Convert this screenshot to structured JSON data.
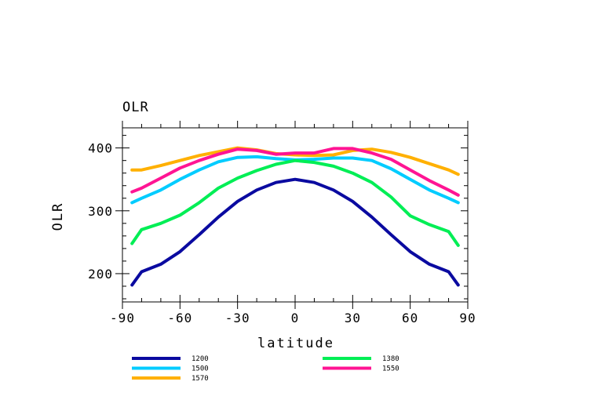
{
  "chart_data": {
    "type": "line",
    "title": "OLR",
    "xlabel": "latitude",
    "ylabel": "OLR",
    "xlim": [
      -90,
      90
    ],
    "ylim": [
      155,
      432
    ],
    "xticks": [
      -90,
      -60,
      -30,
      0,
      30,
      60,
      90
    ],
    "yticks": [
      200,
      300,
      400
    ],
    "x": [
      -85,
      -80,
      -70,
      -60,
      -50,
      -40,
      -30,
      -20,
      -10,
      0,
      10,
      20,
      30,
      40,
      50,
      60,
      70,
      80,
      85
    ],
    "series": [
      {
        "name": "1200",
        "color": "#0a0aa0",
        "values": [
          182,
          203,
          215,
          235,
          262,
          290,
          315,
          333,
          345,
          350,
          345,
          333,
          315,
          290,
          262,
          235,
          215,
          203,
          182
        ]
      },
      {
        "name": "1500",
        "color": "#00ccff",
        "values": [
          313,
          320,
          333,
          350,
          365,
          378,
          385,
          386,
          383,
          381,
          382,
          384,
          384,
          380,
          367,
          350,
          333,
          320,
          313
        ]
      },
      {
        "name": "1570",
        "color": "#ffb000",
        "values": [
          365,
          365,
          372,
          380,
          388,
          394,
          400,
          397,
          391,
          389,
          388,
          389,
          396,
          398,
          393,
          385,
          375,
          365,
          358
        ]
      },
      {
        "name": "1380",
        "color": "#00ee55",
        "values": [
          248,
          270,
          280,
          293,
          313,
          336,
          352,
          364,
          374,
          380,
          377,
          371,
          360,
          345,
          322,
          292,
          278,
          267,
          245
        ]
      },
      {
        "name": "1550",
        "color": "#ff1493",
        "values": [
          330,
          336,
          352,
          368,
          380,
          390,
          398,
          396,
          390,
          392,
          392,
          399,
          399,
          392,
          382,
          365,
          348,
          333,
          325
        ]
      }
    ],
    "grid": false,
    "legend_position": "bottom"
  }
}
